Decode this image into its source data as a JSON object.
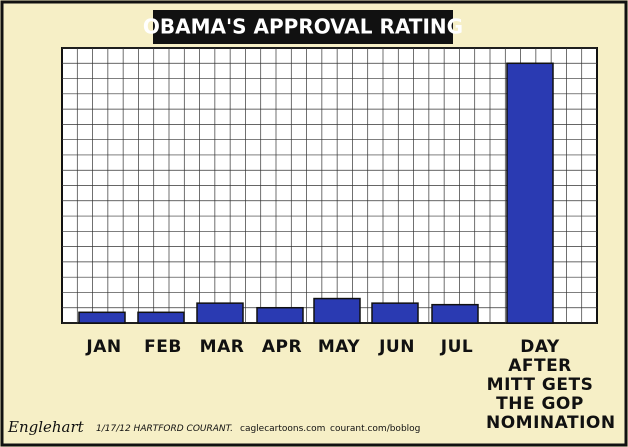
{
  "chart_data": {
    "type": "bar",
    "title": "OBAMA'S APPROVAL RATING",
    "categories": [
      "JAN",
      "FEB",
      "MAR",
      "APR",
      "MAY",
      "JUN",
      "JUL",
      "DAY AFTER MITT GETS THE GOP NOMINATION"
    ],
    "values": [
      0.7,
      0.7,
      1.3,
      1.0,
      1.6,
      1.3,
      1.2,
      17
    ],
    "color": "#2a3ab2",
    "ylim": [
      0,
      18
    ],
    "yticks": [
      0,
      1,
      2,
      3,
      4,
      5,
      6,
      7,
      8,
      9,
      10,
      11,
      12,
      13,
      14,
      15,
      16,
      17,
      18
    ],
    "grid": true,
    "signature": "Englehart",
    "credits": [
      "1/17/12 HARTFORD COURANT.",
      "caglecartoons.com",
      "courant.com/boblog"
    ]
  }
}
